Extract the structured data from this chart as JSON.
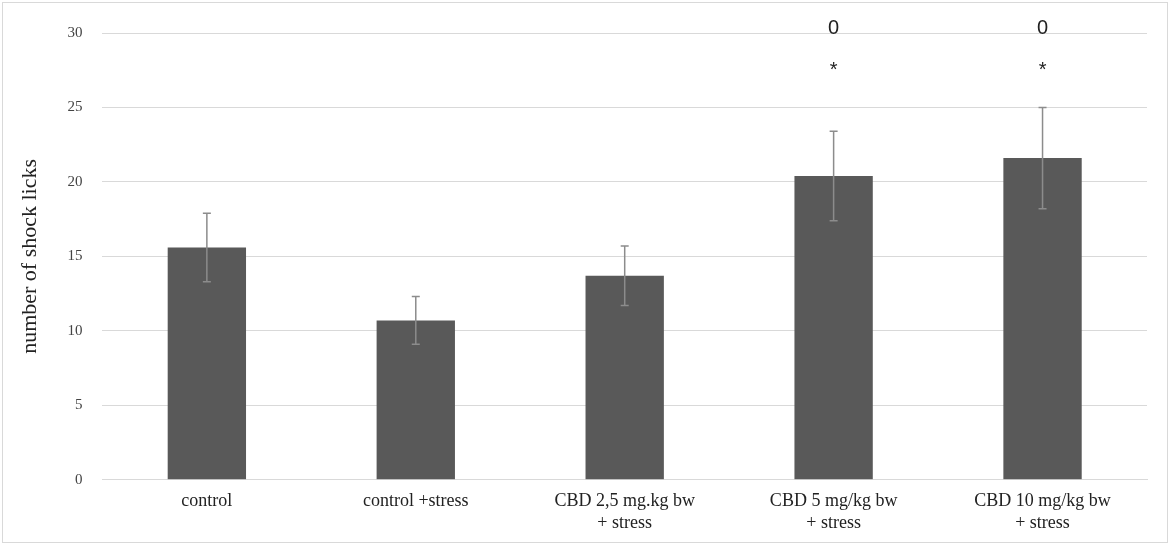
{
  "chart_data": {
    "type": "bar",
    "ylabel": "number of shock licks",
    "categories": [
      "control",
      "control +stress",
      "CBD 2,5 mg.kg bw\n+ stress",
      "CBD 5 mg/kg bw\n+ stress",
      "CBD 10 mg/kg bw\n+ stress"
    ],
    "values": [
      15.6,
      10.7,
      13.7,
      20.4,
      21.6
    ],
    "errors": [
      2.3,
      1.6,
      2.0,
      3.0,
      3.4
    ],
    "color": "#595959",
    "ylim": [
      0,
      30
    ],
    "yticks": [
      0,
      5,
      10,
      15,
      20,
      25,
      30
    ],
    "grid": "y",
    "annotations": [
      "*",
      "0",
      "*",
      "0"
    ]
  }
}
